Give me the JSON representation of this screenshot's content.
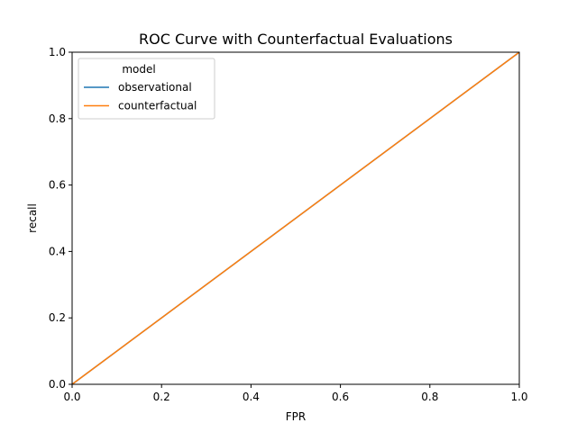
{
  "chart_data": {
    "type": "line",
    "title": "ROC Curve with Counterfactual Evaluations",
    "xlabel": "FPR",
    "ylabel": "recall",
    "xlim": [
      0.0,
      1.0
    ],
    "ylim": [
      0.0,
      1.0
    ],
    "xticks": [
      "0.0",
      "0.2",
      "0.4",
      "0.6",
      "0.8",
      "1.0"
    ],
    "yticks": [
      "0.0",
      "0.2",
      "0.4",
      "0.6",
      "0.8",
      "1.0"
    ],
    "grid": false,
    "legend": {
      "title": "model",
      "placement": "top-left"
    },
    "series": [
      {
        "name": "observational",
        "color": "#1f77b4",
        "x": [
          0.0,
          1.0
        ],
        "y": [
          0.0,
          1.0
        ]
      },
      {
        "name": "counterfactual",
        "color": "#ff7f0e",
        "x": [
          0.0,
          1.0
        ],
        "y": [
          0.0,
          1.0
        ]
      }
    ]
  }
}
